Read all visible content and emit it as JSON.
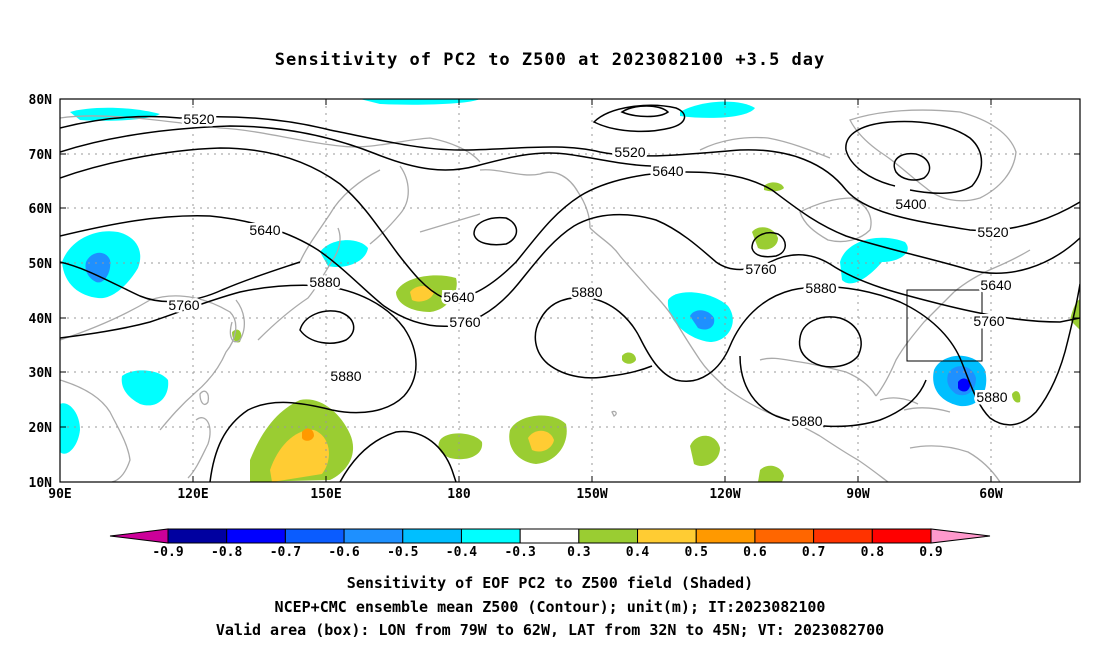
{
  "title": "Sensitivity of PC2 to Z500 at 2023082100 +3.5 day",
  "lat_labels": [
    "80N",
    "70N",
    "60N",
    "50N",
    "40N",
    "30N",
    "20N",
    "10N"
  ],
  "lon_labels": [
    "90E",
    "120E",
    "150E",
    "180",
    "150W",
    "120W",
    "90W",
    "60W"
  ],
  "contour_labels": {
    "l5520a": "5520",
    "l5520b": "5520",
    "l5520c": "5520",
    "l5640a": "5640",
    "l5640b": "5640",
    "l5640c": "5640",
    "l5640d": "5640",
    "l5760a": "5760",
    "l5760b": "5760",
    "l5760c": "5760",
    "l5760d": "5760",
    "l5880a": "5880",
    "l5880b": "5880",
    "l5880c": "5880",
    "l5880d": "5880",
    "l5880e": "5880",
    "l5880f": "5880",
    "l5400": "5400"
  },
  "colorbar": {
    "colors": [
      "#0000a0",
      "#0000ff",
      "#0a5cff",
      "#1e90ff",
      "#00bfff",
      "#00ffff",
      "#ffffff",
      "#9acd32",
      "#ffcc33",
      "#ff9900",
      "#ff6600",
      "#ff3300",
      "#ff0000"
    ],
    "end_colors": {
      "left": "#cc0099",
      "right": "#ff99cc"
    },
    "ticks": [
      "-0.9",
      "-0.8",
      "-0.7",
      "-0.6",
      "-0.5",
      "-0.4",
      "-0.3",
      "0.3",
      "0.4",
      "0.5",
      "0.6",
      "0.7",
      "0.8",
      "0.9"
    ]
  },
  "captions": {
    "line1": "Sensitivity of EOF PC2 to Z500 field (Shaded)",
    "line2": "NCEP+CMC ensemble mean Z500 (Contour); unit(m); IT:2023082100",
    "line3": "Valid area (box): LON from 79W to 62W, LAT from 32N to 45N; VT: 2023082700"
  },
  "colors": {
    "coast": "#aaaaaa",
    "grid": "#999999",
    "contour": "#000000",
    "cyan": "#00ffff",
    "skyblue": "#00bfff",
    "blue": "#1e90ff",
    "darkblue": "#0000ff",
    "green": "#9acd32",
    "yellow": "#ffcc33",
    "orange": "#ff9900"
  }
}
